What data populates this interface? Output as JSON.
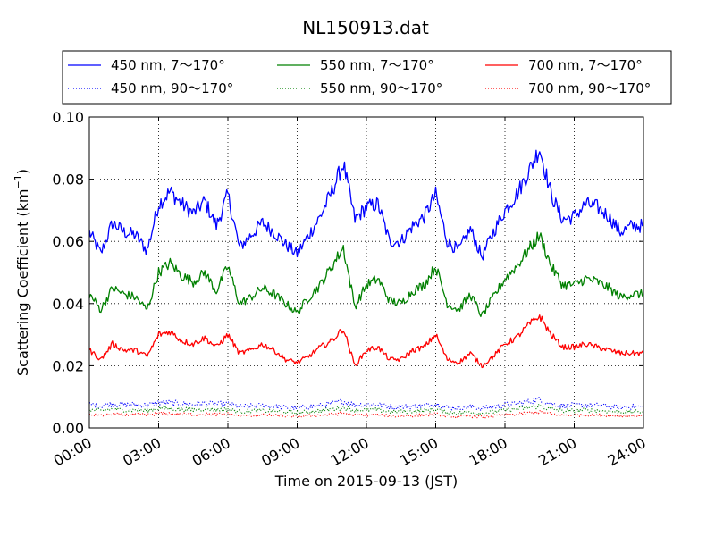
{
  "chart_data": {
    "type": "line",
    "title": "NL150913.dat",
    "xlabel": "Time on 2015-09-13 (JST)",
    "ylabel": "Scattering Coefficient (km",
    "ylabel_unit_sup": "−1",
    "ylabel_close": ")",
    "xlim": [
      "00:00",
      "24:00"
    ],
    "ylim": [
      0.0,
      0.1
    ],
    "x_ticks": [
      "00:00",
      "03:00",
      "06:00",
      "09:00",
      "12:00",
      "15:00",
      "18:00",
      "21:00",
      "24:00"
    ],
    "y_ticks": [
      "0.00",
      "0.02",
      "0.04",
      "0.06",
      "0.08",
      "0.10"
    ],
    "grid": true,
    "grid_style": "dotted",
    "legend_position": "top",
    "legend_columns": 3,
    "x_hours": [
      0,
      0.5,
      1,
      1.5,
      2,
      2.5,
      3,
      3.5,
      4,
      4.5,
      5,
      5.5,
      6,
      6.5,
      7,
      7.5,
      8,
      8.5,
      9,
      9.5,
      10,
      10.5,
      11,
      11.5,
      12,
      12.5,
      13,
      13.5,
      14,
      14.5,
      15,
      15.5,
      16,
      16.5,
      17,
      17.5,
      18,
      18.5,
      19,
      19.5,
      20,
      20.5,
      21,
      21.5,
      22,
      22.5,
      23,
      23.5,
      24
    ],
    "series": [
      {
        "name": "450 nm, 7～170°",
        "color": "#0000ff",
        "style": "solid",
        "values": [
          0.063,
          0.056,
          0.066,
          0.063,
          0.062,
          0.057,
          0.072,
          0.076,
          0.072,
          0.069,
          0.073,
          0.065,
          0.075,
          0.058,
          0.062,
          0.066,
          0.063,
          0.059,
          0.056,
          0.062,
          0.068,
          0.076,
          0.085,
          0.067,
          0.071,
          0.072,
          0.06,
          0.06,
          0.065,
          0.068,
          0.075,
          0.06,
          0.057,
          0.064,
          0.055,
          0.063,
          0.07,
          0.075,
          0.082,
          0.09,
          0.075,
          0.067,
          0.068,
          0.072,
          0.071,
          0.068,
          0.063,
          0.065,
          0.065
        ]
      },
      {
        "name": "450 nm, 90～170°",
        "color": "#0000ff",
        "style": "dotted",
        "values": [
          0.0075,
          0.0072,
          0.0078,
          0.0074,
          0.0076,
          0.0072,
          0.0082,
          0.008,
          0.0078,
          0.0076,
          0.008,
          0.0076,
          0.0078,
          0.0068,
          0.007,
          0.0072,
          0.007,
          0.0066,
          0.0064,
          0.0068,
          0.0072,
          0.0078,
          0.0086,
          0.0074,
          0.0076,
          0.0076,
          0.0068,
          0.0068,
          0.007,
          0.0072,
          0.0078,
          0.0066,
          0.0064,
          0.0068,
          0.0062,
          0.0068,
          0.0074,
          0.0078,
          0.0084,
          0.0092,
          0.0078,
          0.0072,
          0.0072,
          0.0074,
          0.0072,
          0.007,
          0.0066,
          0.0068,
          0.0068
        ]
      },
      {
        "name": "550 nm, 7～170°",
        "color": "#008000",
        "style": "solid",
        "values": [
          0.043,
          0.038,
          0.045,
          0.043,
          0.042,
          0.038,
          0.05,
          0.053,
          0.049,
          0.047,
          0.05,
          0.044,
          0.052,
          0.04,
          0.042,
          0.045,
          0.043,
          0.04,
          0.037,
          0.042,
          0.046,
          0.052,
          0.058,
          0.039,
          0.046,
          0.048,
          0.041,
          0.04,
          0.044,
          0.046,
          0.052,
          0.04,
          0.038,
          0.043,
          0.036,
          0.042,
          0.048,
          0.052,
          0.057,
          0.062,
          0.052,
          0.046,
          0.046,
          0.048,
          0.047,
          0.045,
          0.042,
          0.043,
          0.043
        ]
      },
      {
        "name": "550 nm, 90～170°",
        "color": "#008000",
        "style": "dotted",
        "values": [
          0.0058,
          0.0055,
          0.006,
          0.0057,
          0.0058,
          0.0055,
          0.0064,
          0.0062,
          0.006,
          0.0058,
          0.0062,
          0.0058,
          0.006,
          0.0052,
          0.0054,
          0.0056,
          0.0054,
          0.0051,
          0.0049,
          0.0052,
          0.0055,
          0.006,
          0.0066,
          0.0056,
          0.0058,
          0.0058,
          0.0052,
          0.0052,
          0.0054,
          0.0056,
          0.006,
          0.005,
          0.0048,
          0.0052,
          0.0047,
          0.0052,
          0.0057,
          0.006,
          0.0065,
          0.0071,
          0.006,
          0.0055,
          0.0055,
          0.0057,
          0.0055,
          0.0054,
          0.0051,
          0.0052,
          0.0052
        ]
      },
      {
        "name": "700 nm, 7～170°",
        "color": "#ff0000",
        "style": "solid",
        "values": [
          0.025,
          0.022,
          0.027,
          0.025,
          0.025,
          0.023,
          0.03,
          0.031,
          0.028,
          0.027,
          0.029,
          0.026,
          0.03,
          0.024,
          0.025,
          0.027,
          0.025,
          0.022,
          0.021,
          0.023,
          0.026,
          0.028,
          0.032,
          0.02,
          0.025,
          0.026,
          0.022,
          0.022,
          0.025,
          0.026,
          0.03,
          0.022,
          0.021,
          0.024,
          0.02,
          0.023,
          0.027,
          0.029,
          0.033,
          0.036,
          0.03,
          0.026,
          0.026,
          0.027,
          0.026,
          0.025,
          0.024,
          0.024,
          0.024
        ]
      },
      {
        "name": "700 nm, 90～170°",
        "color": "#ff0000",
        "style": "dotted",
        "values": [
          0.0042,
          0.004,
          0.0044,
          0.0042,
          0.0043,
          0.0041,
          0.0047,
          0.0046,
          0.0044,
          0.0043,
          0.0045,
          0.0043,
          0.0045,
          0.0039,
          0.004,
          0.0041,
          0.004,
          0.0038,
          0.0036,
          0.0039,
          0.0041,
          0.0044,
          0.0048,
          0.004,
          0.0042,
          0.0042,
          0.0038,
          0.0038,
          0.004,
          0.0041,
          0.0044,
          0.0037,
          0.0036,
          0.0038,
          0.0035,
          0.0038,
          0.0042,
          0.0044,
          0.0048,
          0.0052,
          0.0044,
          0.0041,
          0.0041,
          0.0042,
          0.0041,
          0.004,
          0.0038,
          0.0039,
          0.0039
        ]
      }
    ]
  }
}
